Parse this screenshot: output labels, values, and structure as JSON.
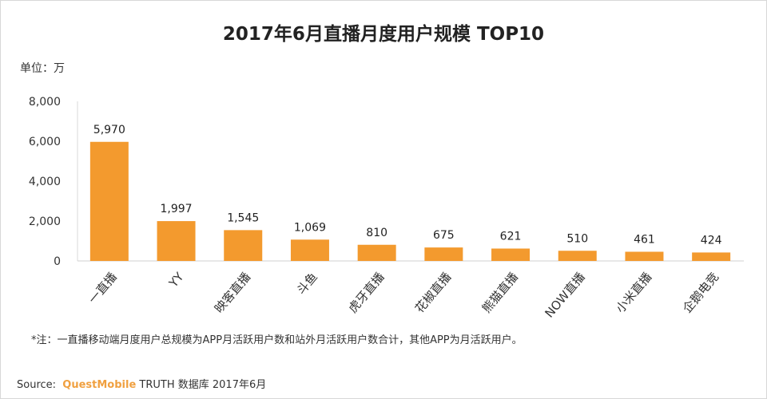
{
  "chart_data": {
    "type": "bar",
    "title": "2017年6月直播月度用户规模 TOP10",
    "unit_label": "单位：万",
    "categories": [
      "一直播",
      "YY",
      "映客直播",
      "斗鱼",
      "虎牙直播",
      "花椒直播",
      "熊猫直播",
      "NOW直播",
      "小米直播",
      "企鹅电竞"
    ],
    "values": [
      5970,
      1997,
      1545,
      1069,
      810,
      675,
      621,
      510,
      461,
      424
    ],
    "data_labels": [
      "5,970",
      "1,997",
      "1,545",
      "1,069",
      "810",
      "675",
      "621",
      "510",
      "461",
      "424"
    ],
    "yticks": [
      "0",
      "2,000",
      "4,000",
      "6,000",
      "8,000"
    ],
    "ytick_values": [
      0,
      2000,
      4000,
      6000,
      8000
    ],
    "ylim": [
      0,
      8000
    ],
    "grid": false,
    "bar_color": "#f39a2e"
  },
  "note": "*注：一直播移动端月度用户总规模为APP月活跃用户数和站外月活跃用户数合计，其他APP为月活跃用户。",
  "source": {
    "prefix": "Source:",
    "brand": "QuestMobile",
    "rest": "TRUTH 数据库 2017年6月"
  }
}
